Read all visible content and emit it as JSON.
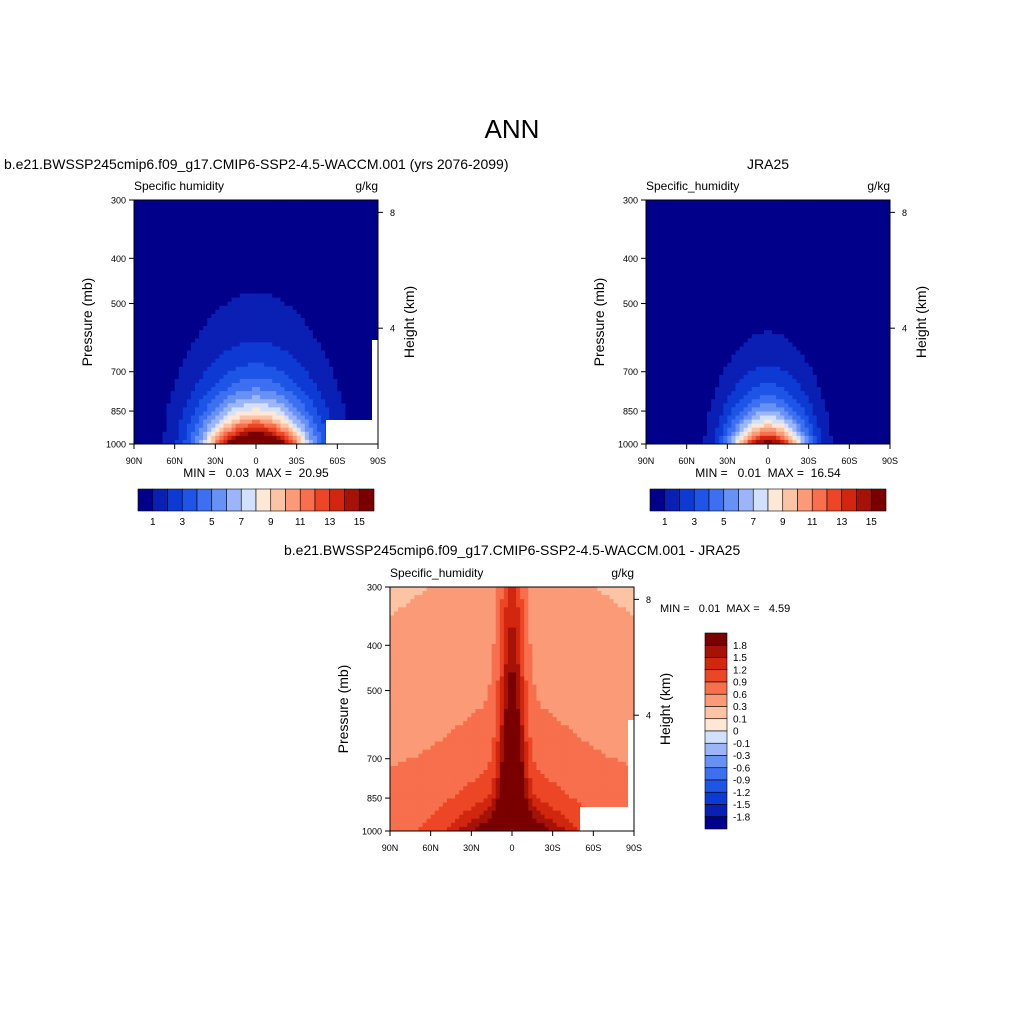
{
  "main_title": "ANN",
  "colors": {
    "abs_palette": [
      "#00008b",
      "#0a1fb4",
      "#0d3ad2",
      "#1f55e6",
      "#3c70f0",
      "#6791f5",
      "#9bb5f8",
      "#d2e1fb",
      "#fde7d5",
      "#fcc3a5",
      "#fa9a76",
      "#f76f4c",
      "#ec4626",
      "#d1270f",
      "#a71207",
      "#7a0000"
    ],
    "diff_palette": [
      "#00008b",
      "#0a1fb4",
      "#0d3ad2",
      "#1f55e6",
      "#3c70f0",
      "#6791f5",
      "#9bb5f8",
      "#d2e1fb",
      "#fde7d5",
      "#fcc3a5",
      "#fa9a76",
      "#f76f4c",
      "#ec4626",
      "#d1270f",
      "#a71207",
      "#7a0000"
    ]
  },
  "panels": [
    {
      "title": "b.e21.BWSSP245cmip6.f09_g17.CMIP6-SSP2-4.5-WACCM.001 (yrs 2076-2099)",
      "left_label": "Specific humidity",
      "right_label": "g/kg",
      "stats": "MIN =   0.03  MAX =  20.95"
    },
    {
      "title": "JRA25",
      "left_label": "Specific_humidity",
      "right_label": "g/kg",
      "stats": "MIN =   0.01  MAX =  16.54"
    },
    {
      "title": "b.e21.BWSSP245cmip6.f09_g17.CMIP6-SSP2-4.5-WACCM.001 - JRA25",
      "left_label": "Specific_humidity",
      "right_label": "g/kg",
      "stats": "MIN =   0.01  MAX =   4.59"
    }
  ],
  "axes": {
    "ylabel": "Pressure (mb)",
    "ylabel_right": "Height (km)",
    "pressure_ticks": [
      "300",
      "400",
      "500",
      "700",
      "850",
      "1000"
    ],
    "height_ticks": [
      "8",
      "4"
    ],
    "lat_ticks": [
      "90N",
      "60N",
      "30N",
      "0",
      "30S",
      "60S",
      "90S"
    ]
  },
  "colorbars": {
    "abs_labels": [
      "1",
      "3",
      "5",
      "7",
      "9",
      "11",
      "13",
      "15"
    ],
    "diff_labels": [
      "1.8",
      "1.5",
      "1.2",
      "0.9",
      "0.6",
      "0.3",
      "0.1",
      "0",
      "-0.1",
      "-0.3",
      "-0.6",
      "-0.9",
      "-1.2",
      "-1.5",
      "-1.8"
    ]
  },
  "chart_data": [
    {
      "type": "heatmap",
      "title": "b.e21.BWSSP245cmip6.f09_g17.CMIP6-SSP2-4.5-WACCM.001 (yrs 2076-2099)",
      "variable": "Specific humidity",
      "units": "g/kg",
      "xlabel": "",
      "ylabel": "Pressure (mb)",
      "ylabel_right": "Height (km)",
      "x_ticks": [
        "90N",
        "60N",
        "30N",
        "0",
        "30S",
        "60S",
        "90S"
      ],
      "y_ticks": [
        300,
        400,
        500,
        700,
        850,
        1000
      ],
      "y_scale": "log",
      "y_reversed": true,
      "contour_levels": [
        1,
        2,
        3,
        4,
        5,
        6,
        7,
        8,
        9,
        10,
        11,
        12,
        13,
        14,
        15
      ],
      "min": 0.03,
      "max": 20.95,
      "peak_lat": 0,
      "peak_pressure": 1000,
      "peak_value": 20.95
    },
    {
      "type": "heatmap",
      "title": "JRA25",
      "variable": "Specific_humidity",
      "units": "g/kg",
      "xlabel": "",
      "ylabel": "Pressure (mb)",
      "ylabel_right": "Height (km)",
      "x_ticks": [
        "90N",
        "60N",
        "30N",
        "0",
        "30S",
        "60S",
        "90S"
      ],
      "y_ticks": [
        300,
        400,
        500,
        700,
        850,
        1000
      ],
      "y_scale": "log",
      "y_reversed": true,
      "contour_levels": [
        1,
        2,
        3,
        4,
        5,
        6,
        7,
        8,
        9,
        10,
        11,
        12,
        13,
        14,
        15
      ],
      "min": 0.01,
      "max": 16.54,
      "peak_lat": 0,
      "peak_pressure": 1000,
      "peak_value": 16.54
    },
    {
      "type": "heatmap",
      "title": "b.e21.BWSSP245cmip6.f09_g17.CMIP6-SSP2-4.5-WACCM.001 - JRA25",
      "variable": "Specific_humidity",
      "units": "g/kg",
      "xlabel": "",
      "ylabel": "Pressure (mb)",
      "ylabel_right": "Height (km)",
      "x_ticks": [
        "90N",
        "60N",
        "30N",
        "0",
        "30S",
        "60S",
        "90S"
      ],
      "y_ticks": [
        300,
        400,
        500,
        700,
        850,
        1000
      ],
      "y_scale": "log",
      "y_reversed": true,
      "contour_levels": [
        -1.8,
        -1.5,
        -1.2,
        -0.9,
        -0.6,
        -0.3,
        -0.1,
        0,
        0.1,
        0.3,
        0.6,
        0.9,
        1.2,
        1.5,
        1.8
      ],
      "min": 0.01,
      "max": 4.59,
      "peak_lat": 0,
      "peak_pressure": 1000,
      "peak_value": 4.59
    }
  ]
}
